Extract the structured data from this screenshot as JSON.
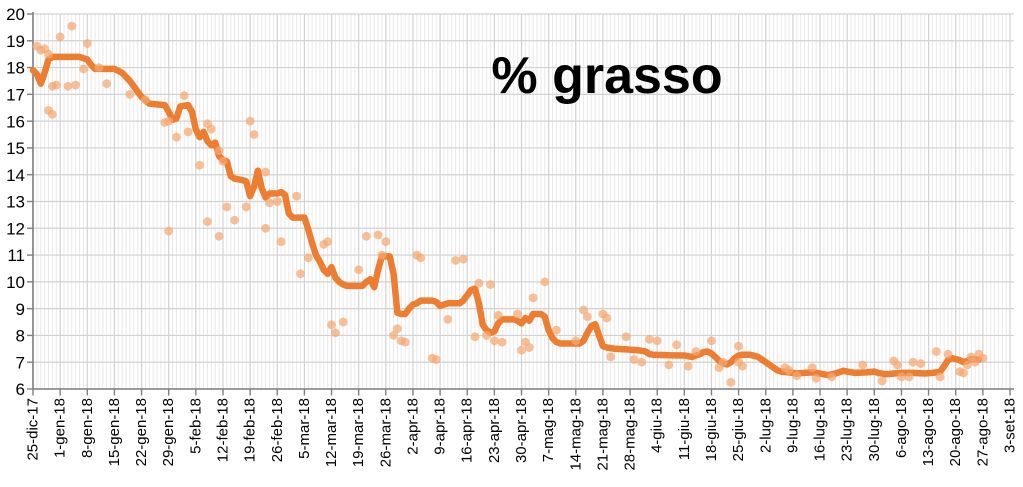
{
  "chart_data": {
    "type": "line",
    "title": "% grasso",
    "legend": "none",
    "grid": true,
    "x_axis": {
      "tick_interval_days": 7,
      "total_days": 252,
      "minor_gridlines": "daily",
      "tick_labels": [
        "25-dic-17",
        "1-gen-18",
        "8-gen-18",
        "15-gen-18",
        "22-gen-18",
        "29-gen-18",
        "5-feb-18",
        "12-feb-18",
        "19-feb-18",
        "26-feb-18",
        "5-mar-18",
        "12-mar-18",
        "19-mar-18",
        "26-mar-18",
        "2-apr-18",
        "9-apr-18",
        "16-apr-18",
        "23-apr-18",
        "30-apr-18",
        "7-mag-18",
        "14-mag-18",
        "21-mag-18",
        "28-mag-18",
        "4-giu-18",
        "11-giu-18",
        "18-giu-18",
        "25-giu-18",
        "2-lug-18",
        "9-lug-18",
        "16-lug-18",
        "23-lug-18",
        "30-lug-18",
        "6-ago-18",
        "13-ago-18",
        "20-ago-18",
        "27-ago-18",
        "3-set-18"
      ]
    },
    "y_axis": {
      "min": 6,
      "max": 20,
      "step": 1,
      "tick_labels": [
        "6",
        "7",
        "8",
        "9",
        "10",
        "11",
        "12",
        "13",
        "14",
        "15",
        "16",
        "17",
        "18",
        "19",
        "20"
      ]
    },
    "series": [
      {
        "name": "moving-average-line",
        "type": "line",
        "color": "#ED7D31",
        "points": [
          [
            0,
            17.9
          ],
          [
            1,
            17.75
          ],
          [
            2,
            17.4
          ],
          [
            3,
            17.8
          ],
          [
            4,
            18.3
          ],
          [
            5,
            18.4
          ],
          [
            12,
            18.4
          ],
          [
            13,
            18.35
          ],
          [
            14,
            18.3
          ],
          [
            15,
            18.1
          ],
          [
            16,
            17.95
          ],
          [
            21,
            17.95
          ],
          [
            23,
            17.8
          ],
          [
            25,
            17.5
          ],
          [
            26,
            17.3
          ],
          [
            28,
            16.9
          ],
          [
            30,
            16.65
          ],
          [
            34,
            16.6
          ],
          [
            35,
            16.35
          ],
          [
            36,
            16.05
          ],
          [
            37,
            16.1
          ],
          [
            38,
            16.55
          ],
          [
            40,
            16.6
          ],
          [
            41,
            16.35
          ],
          [
            42,
            15.7
          ],
          [
            43,
            15.4
          ],
          [
            44,
            15.6
          ],
          [
            45,
            15.25
          ],
          [
            46,
            15.1
          ],
          [
            47,
            15.2
          ],
          [
            48,
            14.7
          ],
          [
            49,
            14.55
          ],
          [
            50,
            14.5
          ],
          [
            51,
            13.95
          ],
          [
            52,
            13.85
          ],
          [
            54,
            13.8
          ],
          [
            55,
            13.75
          ],
          [
            56,
            13.2
          ],
          [
            57,
            13.55
          ],
          [
            58,
            14.15
          ],
          [
            59,
            13.5
          ],
          [
            60,
            13.15
          ],
          [
            61,
            13.3
          ],
          [
            63,
            13.3
          ],
          [
            64,
            13.35
          ],
          [
            65,
            13.25
          ],
          [
            66,
            12.55
          ],
          [
            67,
            12.4
          ],
          [
            70,
            12.4
          ],
          [
            71,
            11.95
          ],
          [
            72,
            11.45
          ],
          [
            73,
            11.0
          ],
          [
            74,
            10.75
          ],
          [
            75,
            10.45
          ],
          [
            76,
            10.3
          ],
          [
            77,
            10.55
          ],
          [
            78,
            10.15
          ],
          [
            79,
            10.0
          ],
          [
            80,
            9.9
          ],
          [
            81,
            9.85
          ],
          [
            85,
            9.85
          ],
          [
            86,
            10.0
          ],
          [
            87,
            10.1
          ],
          [
            88,
            9.8
          ],
          [
            89,
            10.45
          ],
          [
            90,
            10.95
          ],
          [
            92,
            10.95
          ],
          [
            93,
            10.3
          ],
          [
            94,
            8.85
          ],
          [
            95,
            8.8
          ],
          [
            96,
            8.8
          ],
          [
            97,
            9.0
          ],
          [
            98,
            9.15
          ],
          [
            99,
            9.2
          ],
          [
            100,
            9.3
          ],
          [
            103,
            9.3
          ],
          [
            104,
            9.25
          ],
          [
            105,
            9.1
          ],
          [
            106,
            9.15
          ],
          [
            107,
            9.2
          ],
          [
            110,
            9.2
          ],
          [
            111,
            9.3
          ],
          [
            112,
            9.5
          ],
          [
            113,
            9.7
          ],
          [
            114,
            9.75
          ],
          [
            115,
            9.2
          ],
          [
            116,
            8.4
          ],
          [
            117,
            8.2
          ],
          [
            118,
            8.1
          ],
          [
            119,
            8.15
          ],
          [
            120,
            8.45
          ],
          [
            121,
            8.6
          ],
          [
            124,
            8.6
          ],
          [
            125,
            8.55
          ],
          [
            126,
            8.45
          ],
          [
            127,
            8.65
          ],
          [
            128,
            8.55
          ],
          [
            129,
            8.8
          ],
          [
            131,
            8.8
          ],
          [
            132,
            8.7
          ],
          [
            133,
            8.2
          ],
          [
            134,
            7.9
          ],
          [
            135,
            7.75
          ],
          [
            136,
            7.7
          ],
          [
            141,
            7.7
          ],
          [
            142,
            7.8
          ],
          [
            143,
            8.1
          ],
          [
            144,
            8.35
          ],
          [
            145,
            8.42
          ],
          [
            146,
            8.0
          ],
          [
            147,
            7.6
          ],
          [
            148,
            7.55
          ],
          [
            150,
            7.5
          ],
          [
            153,
            7.48
          ],
          [
            156,
            7.45
          ],
          [
            158,
            7.4
          ],
          [
            159,
            7.3
          ],
          [
            160,
            7.28
          ],
          [
            164,
            7.26
          ],
          [
            168,
            7.25
          ],
          [
            170,
            7.2
          ],
          [
            171,
            7.25
          ],
          [
            172,
            7.3
          ],
          [
            173,
            7.38
          ],
          [
            174,
            7.4
          ],
          [
            175,
            7.32
          ],
          [
            176,
            7.2
          ],
          [
            177,
            7.05
          ],
          [
            178,
            6.95
          ],
          [
            179,
            6.92
          ],
          [
            180,
            7.0
          ],
          [
            181,
            7.15
          ],
          [
            182,
            7.25
          ],
          [
            183,
            7.28
          ],
          [
            185,
            7.28
          ],
          [
            187,
            7.2
          ],
          [
            188,
            7.1
          ],
          [
            189,
            7.0
          ],
          [
            190,
            6.9
          ],
          [
            191,
            6.8
          ],
          [
            192,
            6.7
          ],
          [
            193,
            6.65
          ],
          [
            195,
            6.62
          ],
          [
            197,
            6.58
          ],
          [
            199,
            6.6
          ],
          [
            201,
            6.62
          ],
          [
            203,
            6.58
          ],
          [
            205,
            6.52
          ],
          [
            207,
            6.58
          ],
          [
            209,
            6.68
          ],
          [
            210,
            6.65
          ],
          [
            212,
            6.6
          ],
          [
            215,
            6.62
          ],
          [
            217,
            6.65
          ],
          [
            218,
            6.6
          ],
          [
            220,
            6.55
          ],
          [
            222,
            6.58
          ],
          [
            224,
            6.6
          ],
          [
            227,
            6.6
          ],
          [
            230,
            6.58
          ],
          [
            232,
            6.6
          ],
          [
            233,
            6.62
          ],
          [
            234,
            6.65
          ],
          [
            235,
            6.85
          ],
          [
            236,
            7.08
          ],
          [
            237,
            7.15
          ],
          [
            238,
            7.12
          ],
          [
            239,
            7.08
          ],
          [
            240,
            7.0
          ],
          [
            241,
            7.05
          ],
          [
            242,
            7.12
          ],
          [
            243,
            7.1
          ],
          [
            244,
            7.1
          ]
        ]
      },
      {
        "name": "daily-measurements-scatter",
        "type": "scatter",
        "color": "#F4A871",
        "points": [
          [
            1,
            18.8
          ],
          [
            2,
            18.65
          ],
          [
            3,
            18.7
          ],
          [
            4,
            18.5
          ],
          [
            4,
            16.4
          ],
          [
            5,
            16.25
          ],
          [
            5,
            17.3
          ],
          [
            6,
            17.35
          ],
          [
            7,
            19.15
          ],
          [
            10,
            19.55
          ],
          [
            9,
            17.3
          ],
          [
            11,
            17.35
          ],
          [
            14,
            18.9
          ],
          [
            13,
            17.95
          ],
          [
            17,
            18.0
          ],
          [
            19,
            17.4
          ],
          [
            25,
            17.0
          ],
          [
            29,
            16.8
          ],
          [
            34,
            15.95
          ],
          [
            35,
            16.0
          ],
          [
            35,
            11.9
          ],
          [
            37,
            15.4
          ],
          [
            39,
            16.95
          ],
          [
            40,
            15.6
          ],
          [
            43,
            14.35
          ],
          [
            45,
            15.9
          ],
          [
            45,
            12.25
          ],
          [
            46,
            15.7
          ],
          [
            48,
            14.9
          ],
          [
            48,
            11.7
          ],
          [
            49,
            14.5
          ],
          [
            50,
            12.8
          ],
          [
            52,
            12.3
          ],
          [
            55,
            12.8
          ],
          [
            56,
            16.0
          ],
          [
            57,
            15.5
          ],
          [
            60,
            14.1
          ],
          [
            60,
            12.0
          ],
          [
            61,
            12.95
          ],
          [
            63,
            13.0
          ],
          [
            64,
            11.5
          ],
          [
            68,
            13.2
          ],
          [
            69,
            10.3
          ],
          [
            71,
            10.9
          ],
          [
            75,
            11.4
          ],
          [
            76,
            11.5
          ],
          [
            77,
            8.4
          ],
          [
            78,
            8.1
          ],
          [
            80,
            8.5
          ],
          [
            84,
            10.45
          ],
          [
            86,
            11.7
          ],
          [
            89,
            11.75
          ],
          [
            90,
            11.0
          ],
          [
            91,
            11.5
          ],
          [
            93,
            8.0
          ],
          [
            94,
            8.25
          ],
          [
            95,
            7.8
          ],
          [
            96,
            7.75
          ],
          [
            99,
            11.0
          ],
          [
            100,
            10.9
          ],
          [
            103,
            7.15
          ],
          [
            104,
            7.1
          ],
          [
            107,
            8.6
          ],
          [
            109,
            10.8
          ],
          [
            111,
            10.85
          ],
          [
            114,
            7.95
          ],
          [
            115,
            9.95
          ],
          [
            117,
            8.0
          ],
          [
            118,
            9.9
          ],
          [
            119,
            7.8
          ],
          [
            120,
            8.75
          ],
          [
            121,
            7.75
          ],
          [
            125,
            8.8
          ],
          [
            126,
            7.45
          ],
          [
            127,
            7.75
          ],
          [
            128,
            7.55
          ],
          [
            129,
            9.4
          ],
          [
            132,
            10.0
          ],
          [
            135,
            8.2
          ],
          [
            140,
            7.8
          ],
          [
            142,
            8.95
          ],
          [
            143,
            8.7
          ],
          [
            147,
            8.8
          ],
          [
            148,
            8.65
          ],
          [
            149,
            7.2
          ],
          [
            153,
            7.95
          ],
          [
            155,
            7.1
          ],
          [
            157,
            7.0
          ],
          [
            159,
            7.85
          ],
          [
            161,
            7.8
          ],
          [
            164,
            6.9
          ],
          [
            166,
            7.65
          ],
          [
            169,
            6.85
          ],
          [
            171,
            7.4
          ],
          [
            175,
            7.8
          ],
          [
            177,
            6.8
          ],
          [
            178,
            7.0
          ],
          [
            180,
            6.25
          ],
          [
            182,
            7.6
          ],
          [
            182,
            7.0
          ],
          [
            183,
            6.85
          ],
          [
            194,
            6.8
          ],
          [
            195,
            6.7
          ],
          [
            197,
            6.5
          ],
          [
            201,
            6.8
          ],
          [
            202,
            6.4
          ],
          [
            206,
            6.45
          ],
          [
            214,
            6.9
          ],
          [
            219,
            6.3
          ],
          [
            222,
            7.05
          ],
          [
            223,
            6.9
          ],
          [
            224,
            6.45
          ],
          [
            226,
            6.45
          ],
          [
            227,
            7.0
          ],
          [
            229,
            6.95
          ],
          [
            233,
            7.4
          ],
          [
            234,
            6.45
          ],
          [
            236,
            7.3
          ],
          [
            239,
            6.65
          ],
          [
            240,
            6.6
          ],
          [
            241,
            6.9
          ],
          [
            242,
            7.2
          ],
          [
            243,
            7.0
          ],
          [
            244,
            7.3
          ],
          [
            245,
            7.15
          ]
        ]
      }
    ],
    "colors": {
      "background": "#FFFFFF",
      "major_gridline": "#D2D2D2",
      "minor_gridline": "#E9E9E9",
      "axis": "#7F7F7F",
      "label_text": "#000000",
      "title_text": "#000000"
    }
  }
}
